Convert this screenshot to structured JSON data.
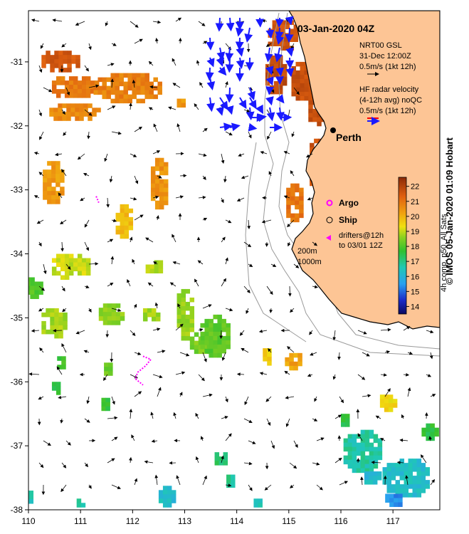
{
  "title": "03-Jan-2020 04Z",
  "place_label": "Perth",
  "legend": {
    "model": [
      "NRT00 GSL",
      "31-Dec 12:00Z",
      "0.5m/s (1kt 12h)"
    ],
    "radar": [
      "HF radar velocity",
      "(4-12h avg) noQC",
      "0.5m/s (1kt 12h)"
    ],
    "argo": "Argo",
    "ship": "Ship",
    "drifters": [
      "drifters@12h",
      "to 03/01 12Z"
    ],
    "depths": [
      "200m",
      "1000m"
    ]
  },
  "colorbar": {
    "label": "4h comp, p50, All Sats",
    "ticks": [
      14,
      15,
      16,
      17,
      18,
      19,
      20,
      21,
      22
    ],
    "range": [
      13.5,
      22.6
    ]
  },
  "credit": "© IMOS 05-Jan-2020 01:09 Hobart",
  "axes": {
    "x_ticks": [
      "110",
      "111",
      "112",
      "113",
      "114",
      "115",
      "116",
      "117"
    ],
    "y_ticks": [
      "-31",
      "-32",
      "-33",
      "-34",
      "-35",
      "-36",
      "-37",
      "-38"
    ],
    "lon_range": [
      110,
      117.9
    ],
    "lat_range": [
      -38,
      -30.2
    ]
  },
  "colors": {
    "land": "#FDC595",
    "radar_arrow": "#1a1aff",
    "argo": "#ff00ff",
    "ship": "#000000",
    "coastline": "#000000",
    "isobath": "#9a9a9a"
  },
  "sst_patches": [
    {
      "lon": 110.6,
      "lat": -31.0,
      "temp": 21.4,
      "w": 0.7,
      "h": 0.35
    },
    {
      "lon": 110.9,
      "lat": -31.4,
      "temp": 20.8,
      "w": 0.9,
      "h": 0.35
    },
    {
      "lon": 111.9,
      "lat": -31.4,
      "temp": 20.7,
      "w": 1.3,
      "h": 0.45
    },
    {
      "lon": 110.9,
      "lat": -31.8,
      "temp": 20.6,
      "w": 1.0,
      "h": 0.3
    },
    {
      "lon": 112.95,
      "lat": -31.65,
      "temp": 20.3,
      "w": 0.2,
      "h": 0.15
    },
    {
      "lon": 110.5,
      "lat": -32.9,
      "temp": 20.3,
      "w": 0.45,
      "h": 0.7
    },
    {
      "lon": 112.5,
      "lat": -32.9,
      "temp": 20.4,
      "w": 0.3,
      "h": 0.8
    },
    {
      "lon": 111.85,
      "lat": -33.5,
      "temp": 19.8,
      "w": 0.35,
      "h": 0.55
    },
    {
      "lon": 110.8,
      "lat": -34.2,
      "temp": 19.0,
      "w": 0.7,
      "h": 0.4
    },
    {
      "lon": 112.4,
      "lat": -34.2,
      "temp": 18.8,
      "w": 0.3,
      "h": 0.2
    },
    {
      "lon": 110.1,
      "lat": -34.5,
      "temp": 17.9,
      "w": 0.3,
      "h": 0.4
    },
    {
      "lon": 110.5,
      "lat": -35.1,
      "temp": 18.7,
      "w": 0.5,
      "h": 0.5
    },
    {
      "lon": 111.6,
      "lat": -34.95,
      "temp": 18.5,
      "w": 0.5,
      "h": 0.35
    },
    {
      "lon": 112.35,
      "lat": -34.95,
      "temp": 18.7,
      "w": 0.3,
      "h": 0.2
    },
    {
      "lon": 113.0,
      "lat": -34.95,
      "temp": 18.6,
      "w": 0.3,
      "h": 0.8
    },
    {
      "lon": 113.35,
      "lat": -35.4,
      "temp": 18.3,
      "w": 0.5,
      "h": 0.35
    },
    {
      "lon": 113.6,
      "lat": -35.3,
      "temp": 18.0,
      "w": 0.6,
      "h": 0.7
    },
    {
      "lon": 114.6,
      "lat": -35.6,
      "temp": 19.6,
      "w": 0.2,
      "h": 0.25
    },
    {
      "lon": 115.1,
      "lat": -35.7,
      "temp": 20.2,
      "w": 0.35,
      "h": 0.3
    },
    {
      "lon": 110.65,
      "lat": -35.7,
      "temp": 17.6,
      "w": 0.2,
      "h": 0.2
    },
    {
      "lon": 111.55,
      "lat": -35.8,
      "temp": 18.2,
      "w": 0.2,
      "h": 0.2
    },
    {
      "lon": 110.55,
      "lat": -36.1,
      "temp": 17.5,
      "w": 0.2,
      "h": 0.2
    },
    {
      "lon": 111.5,
      "lat": -36.35,
      "temp": 17.6,
      "w": 0.2,
      "h": 0.2
    },
    {
      "lon": 116.9,
      "lat": -36.35,
      "temp": 19.4,
      "w": 0.3,
      "h": 0.3
    },
    {
      "lon": 116.1,
      "lat": -36.6,
      "temp": 17.3,
      "w": 0.2,
      "h": 0.2
    },
    {
      "lon": 117.7,
      "lat": -36.8,
      "temp": 17.4,
      "w": 0.3,
      "h": 0.3
    },
    {
      "lon": 116.4,
      "lat": -37.1,
      "temp": 16.6,
      "w": 0.7,
      "h": 0.7
    },
    {
      "lon": 117.25,
      "lat": -37.5,
      "temp": 16.2,
      "w": 0.9,
      "h": 0.6
    },
    {
      "lon": 116.6,
      "lat": -37.5,
      "temp": 16.1,
      "w": 0.3,
      "h": 0.2
    },
    {
      "lon": 113.7,
      "lat": -37.2,
      "temp": 17.1,
      "w": 0.25,
      "h": 0.2
    },
    {
      "lon": 113.9,
      "lat": -37.55,
      "temp": 16.8,
      "w": 0.2,
      "h": 0.2
    },
    {
      "lon": 112.65,
      "lat": -37.8,
      "temp": 16.2,
      "w": 0.3,
      "h": 0.35
    },
    {
      "lon": 110.0,
      "lat": -37.8,
      "temp": 16.4,
      "w": 0.15,
      "h": 0.2
    },
    {
      "lon": 111.0,
      "lat": -37.9,
      "temp": 16.6,
      "w": 0.15,
      "h": 0.15
    },
    {
      "lon": 114.4,
      "lat": -37.9,
      "temp": 16.5,
      "w": 0.15,
      "h": 0.15
    },
    {
      "lon": 117.0,
      "lat": -37.85,
      "temp": 15.4,
      "w": 0.3,
      "h": 0.2
    },
    {
      "lon": 114.9,
      "lat": -30.6,
      "temp": 21.5,
      "w": 0.6,
      "h": 0.5
    },
    {
      "lon": 114.75,
      "lat": -31.2,
      "temp": 21.7,
      "w": 0.4,
      "h": 0.6
    },
    {
      "lon": 115.3,
      "lat": -31.3,
      "temp": 21.6,
      "w": 0.5,
      "h": 0.6
    },
    {
      "lon": 115.55,
      "lat": -31.7,
      "temp": 21.7,
      "w": 0.35,
      "h": 0.6
    },
    {
      "lon": 115.55,
      "lat": -32.6,
      "temp": 21.6,
      "w": 0.3,
      "h": 0.8
    },
    {
      "lon": 115.1,
      "lat": -33.2,
      "temp": 20.9,
      "w": 0.3,
      "h": 0.6
    }
  ],
  "drifter_track": [
    {
      "lon": 112.2,
      "lat": -35.6
    },
    {
      "lon": 112.35,
      "lat": -35.65
    },
    {
      "lon": 112.25,
      "lat": -35.75
    },
    {
      "lon": 112.1,
      "lat": -35.85
    },
    {
      "lon": 112.05,
      "lat": -35.95
    },
    {
      "lon": 112.2,
      "lat": -36.05
    }
  ],
  "drifter_track2": [
    {
      "lon": 111.3,
      "lat": -33.1
    },
    {
      "lon": 111.35,
      "lat": -33.2
    }
  ]
}
